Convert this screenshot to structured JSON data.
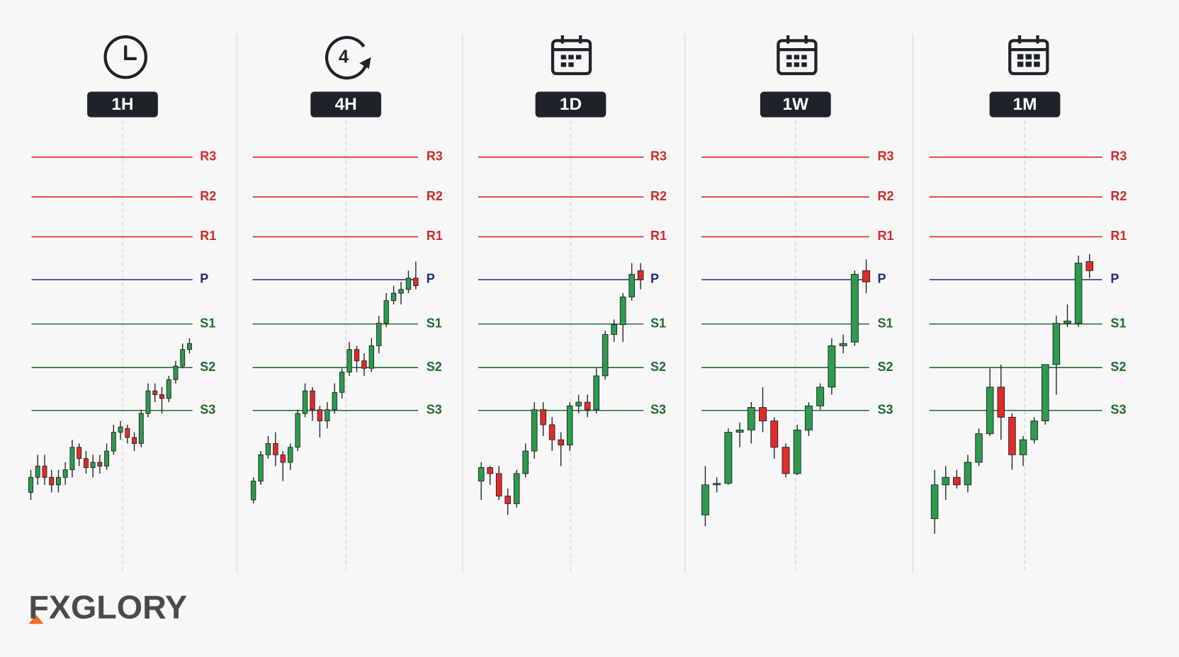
{
  "brand": "FXGLORY",
  "chart_data": [
    {
      "type": "candlestick",
      "title": "1H",
      "ylim": [
        -12,
        42
      ],
      "up_color": "#2e9a4e",
      "down_color": "#e02b2b",
      "levels": [
        {
          "name": "R3",
          "value": 39.1,
          "color": "#d62828"
        },
        {
          "name": "R2",
          "value": 33.8,
          "color": "#d62828"
        },
        {
          "name": "R1",
          "value": 28.5,
          "color": "#d62828"
        },
        {
          "name": "P",
          "value": 22.8,
          "color": "#1f2a7a"
        },
        {
          "name": "S1",
          "value": 16.9,
          "color": "#1e6b2e"
        },
        {
          "name": "S2",
          "value": 11.1,
          "color": "#1e6b2e"
        },
        {
          "name": "S3",
          "value": 5.4,
          "color": "#1e6b2e"
        }
      ],
      "open": [
        -5.5,
        -3.5,
        -2,
        -3.5,
        -4.5,
        -3.5,
        -2.5,
        0.5,
        -1,
        -2.2,
        -1.5,
        -2,
        0,
        2.5,
        3,
        1.8,
        1,
        5,
        8,
        7.5,
        7,
        9.5,
        11.3,
        13.5
      ],
      "high": [
        -2.5,
        -0.5,
        -0.5,
        -2.5,
        -2.5,
        -1.5,
        1.5,
        1,
        0,
        -0.5,
        -0.5,
        1,
        3.5,
        4,
        3.5,
        2.5,
        5.5,
        9,
        9,
        8.5,
        10,
        12,
        14.3,
        15
      ],
      "low": [
        -6.5,
        -4.5,
        -4.5,
        -5.5,
        -5.5,
        -4.5,
        -3.5,
        -2,
        -3,
        -3.5,
        -3,
        -2.5,
        -0.5,
        1.5,
        1,
        0,
        0.5,
        4.5,
        6.5,
        5,
        6.5,
        9,
        11,
        13
      ],
      "close": [
        -3.5,
        -2,
        -3.5,
        -4.5,
        -3.5,
        -2.5,
        0.5,
        -1,
        -2.2,
        -1.5,
        -2,
        0,
        2.5,
        3.2,
        1.8,
        1,
        5,
        8,
        7.5,
        7,
        9.5,
        11.3,
        13.5,
        14.3
      ]
    },
    {
      "type": "candlestick",
      "title": "4H",
      "ylim": [
        -12,
        42
      ],
      "up_color": "#2e9a4e",
      "down_color": "#e02b2b",
      "levels": [
        {
          "name": "R3",
          "value": 39.1,
          "color": "#d62828"
        },
        {
          "name": "R2",
          "value": 33.8,
          "color": "#d62828"
        },
        {
          "name": "R1",
          "value": 28.5,
          "color": "#d62828"
        },
        {
          "name": "P",
          "value": 22.8,
          "color": "#1f2a7a"
        },
        {
          "name": "S1",
          "value": 16.9,
          "color": "#1e6b2e"
        },
        {
          "name": "S2",
          "value": 11.1,
          "color": "#1e6b2e"
        },
        {
          "name": "S3",
          "value": 5.4,
          "color": "#1e6b2e"
        }
      ],
      "open": [
        -6.5,
        -4,
        -0.5,
        1,
        -0.5,
        -1.5,
        0.5,
        5,
        8,
        5.5,
        4,
        5.5,
        7.8,
        10.5,
        13.5,
        12,
        11,
        14,
        17,
        20,
        21,
        21.5,
        23
      ],
      "high": [
        -3.5,
        0,
        2,
        2.5,
        0,
        1,
        5.5,
        9,
        8.5,
        6,
        6.5,
        9,
        11,
        14.5,
        14,
        13,
        15,
        18,
        21,
        22,
        22.5,
        24,
        25.2
      ],
      "low": [
        -7,
        -4.5,
        -1,
        -2,
        -4,
        -2.5,
        0,
        4.5,
        4,
        1.8,
        3,
        5,
        7,
        10,
        10.5,
        10,
        10.5,
        13,
        16.5,
        19.5,
        19.5,
        21,
        21.5
      ],
      "close": [
        -4,
        -0.5,
        1,
        -0.5,
        -1.5,
        0.5,
        5,
        8,
        5.5,
        4,
        5.5,
        7.8,
        10.5,
        13.5,
        12,
        11,
        14,
        17,
        20,
        21,
        21.5,
        23,
        22
      ]
    },
    {
      "type": "candlestick",
      "title": "1D",
      "ylim": [
        -12,
        42
      ],
      "up_color": "#2e9a4e",
      "down_color": "#e02b2b",
      "levels": [
        {
          "name": "R3",
          "value": 39.1,
          "color": "#d62828"
        },
        {
          "name": "R2",
          "value": 33.8,
          "color": "#d62828"
        },
        {
          "name": "R1",
          "value": 28.5,
          "color": "#d62828"
        },
        {
          "name": "P",
          "value": 22.8,
          "color": "#1f2a7a"
        },
        {
          "name": "S1",
          "value": 16.9,
          "color": "#1e6b2e"
        },
        {
          "name": "S2",
          "value": 11.1,
          "color": "#1e6b2e"
        },
        {
          "name": "S3",
          "value": 5.4,
          "color": "#1e6b2e"
        }
      ],
      "open": [
        -4,
        -2.2,
        -3,
        -6,
        -7,
        -3,
        0,
        5.5,
        3.5,
        1.5,
        0.8,
        6,
        6.5,
        5.5,
        10,
        15.5,
        16.8,
        20.5,
        24
      ],
      "high": [
        -1.5,
        -2,
        -2,
        -5,
        -2.5,
        1,
        6.5,
        6.5,
        4.5,
        2.5,
        6.5,
        7.5,
        7.5,
        11,
        16,
        17.5,
        21,
        25,
        25
      ],
      "low": [
        -6.5,
        -4.5,
        -6.5,
        -8.5,
        -7.5,
        -3.5,
        -1,
        2,
        0,
        -2,
        0,
        5,
        4.5,
        5,
        9.5,
        14.5,
        14.5,
        20,
        21.5
      ],
      "close": [
        -2.2,
        -3,
        -6,
        -7,
        -3,
        0,
        5.5,
        3.5,
        1.5,
        0.8,
        6,
        6.5,
        5.5,
        10,
        15.5,
        16.8,
        20.5,
        23.5,
        22.8
      ]
    },
    {
      "type": "candlestick",
      "title": "1W",
      "ylim": [
        -12,
        42
      ],
      "up_color": "#2e9a4e",
      "down_color": "#e02b2b",
      "levels": [
        {
          "name": "R3",
          "value": 39.1,
          "color": "#d62828"
        },
        {
          "name": "R2",
          "value": 33.8,
          "color": "#d62828"
        },
        {
          "name": "R1",
          "value": 28.5,
          "color": "#d62828"
        },
        {
          "name": "P",
          "value": 22.8,
          "color": "#1f2a7a"
        },
        {
          "name": "S1",
          "value": 16.9,
          "color": "#1e6b2e"
        },
        {
          "name": "S2",
          "value": 11.1,
          "color": "#1e6b2e"
        },
        {
          "name": "S3",
          "value": 5.4,
          "color": "#1e6b2e"
        }
      ],
      "open": [
        -8.5,
        -4.5,
        -4.3,
        2.5,
        2.8,
        5.8,
        4,
        0.5,
        -3,
        2.8,
        6,
        8.5,
        14,
        14.5,
        24
      ],
      "high": [
        -2,
        -3.5,
        3,
        3.8,
        6.5,
        8.5,
        4.5,
        1,
        3.5,
        6.5,
        9,
        15,
        15.5,
        24,
        25.5
      ],
      "low": [
        -10,
        -5.5,
        -4.5,
        0.5,
        1,
        2.5,
        -1,
        -3.5,
        -3.2,
        2,
        5.5,
        7.5,
        13,
        14,
        21
      ],
      "close": [
        -4.5,
        -4.3,
        2.5,
        2.8,
        5.8,
        4,
        0.5,
        -3,
        2.8,
        6,
        8.5,
        14,
        14.3,
        23.5,
        22.5
      ]
    },
    {
      "type": "candlestick",
      "title": "1M",
      "ylim": [
        -12,
        42
      ],
      "up_color": "#2e9a4e",
      "down_color": "#e02b2b",
      "levels": [
        {
          "name": "R3",
          "value": 39.1,
          "color": "#d62828"
        },
        {
          "name": "R2",
          "value": 33.8,
          "color": "#d62828"
        },
        {
          "name": "R1",
          "value": 28.5,
          "color": "#d62828"
        },
        {
          "name": "P",
          "value": 22.8,
          "color": "#1f2a7a"
        },
        {
          "name": "S1",
          "value": 16.9,
          "color": "#1e6b2e"
        },
        {
          "name": "S2",
          "value": 11.1,
          "color": "#1e6b2e"
        },
        {
          "name": "S3",
          "value": 5.4,
          "color": "#1e6b2e"
        }
      ],
      "open": [
        -9,
        -4.5,
        -3.5,
        -4.5,
        -1.5,
        2.3,
        8.5,
        4.5,
        -0.5,
        1.5,
        4,
        11.5,
        17,
        17,
        25.2
      ],
      "high": [
        -2.5,
        -2,
        -2.5,
        -0.5,
        3,
        11,
        11.5,
        5,
        2,
        4.5,
        11.5,
        18,
        19.5,
        26,
        26.2
      ],
      "low": [
        -11,
        -6.5,
        -5,
        -5.5,
        -2,
        2,
        1.5,
        -2.5,
        -2,
        1,
        3.5,
        7.5,
        16.5,
        16.5,
        23
      ],
      "close": [
        -4.5,
        -3.5,
        -4.5,
        -1.5,
        2.3,
        8.5,
        4.5,
        -0.5,
        1.5,
        4,
        11.5,
        17,
        17.3,
        25,
        24
      ]
    }
  ]
}
